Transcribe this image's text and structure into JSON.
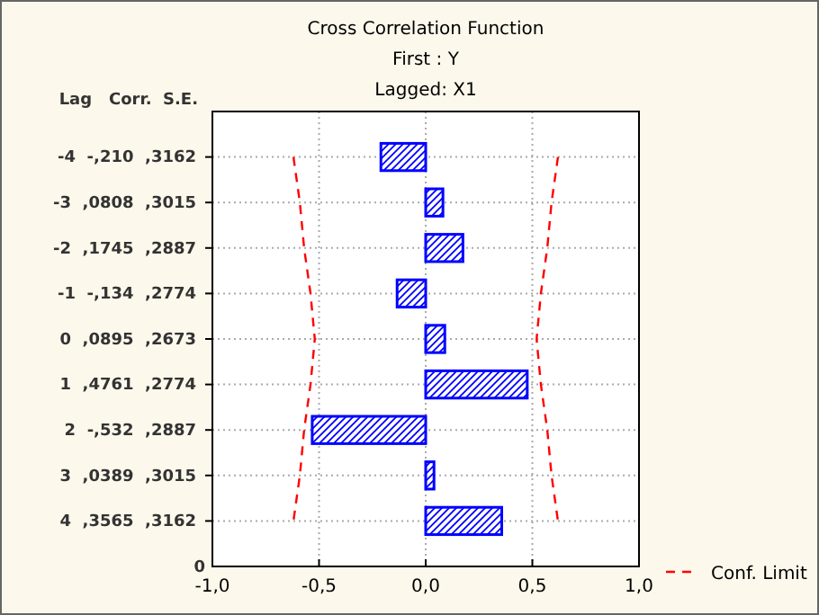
{
  "chart_data": {
    "type": "bar",
    "orientation": "horizontal",
    "title": "Cross Correlation Function",
    "subtitle": "First : Y\nLagged: X1",
    "ylabel": "Lag   Corr.  S.E.",
    "categories": [
      "-4  -,210  ,3162",
      "-3  ,0808  ,3015",
      "-2  ,1745  ,2887",
      "-1  -,134  ,2774",
      " 0  ,0895  ,2673",
      " 1  ,4761  ,2774",
      " 2  -,532  ,2887",
      " 3  ,0389  ,3015",
      " 4  ,3565  ,3162"
    ],
    "series": [
      {
        "color": "#0000ff",
        "values": [
          -0.21,
          0.0808,
          0.1745,
          -0.134,
          0.0895,
          0.4761,
          -0.532,
          0.0389,
          0.3565
        ]
      },
      {
        "type": "line",
        "name": "Conf. Limit",
        "color": "#ff0000",
        "line_style": "dashed",
        "values": [
          0.62,
          0.59,
          0.57,
          0.54,
          0.52,
          0.54,
          0.57,
          0.59,
          0.62
        ]
      },
      {
        "type": "line",
        "color": "#ff0000",
        "line_style": "dashed",
        "values": [
          -0.62,
          -0.59,
          -0.57,
          -0.54,
          -0.52,
          -0.54,
          -0.57,
          -0.59,
          -0.62
        ]
      }
    ],
    "xlim": [
      -1,
      1
    ],
    "xticks": [
      {
        "value": -1,
        "label": "-1,0"
      },
      {
        "value": -0.5,
        "label": "-0,5"
      },
      {
        "value": 0,
        "label": "0,0"
      },
      {
        "value": 0.5,
        "label": "0,5"
      },
      {
        "value": 1,
        "label": "1,0"
      }
    ],
    "annotations": [
      "0"
    ],
    "grid": true,
    "legend": "right"
  }
}
